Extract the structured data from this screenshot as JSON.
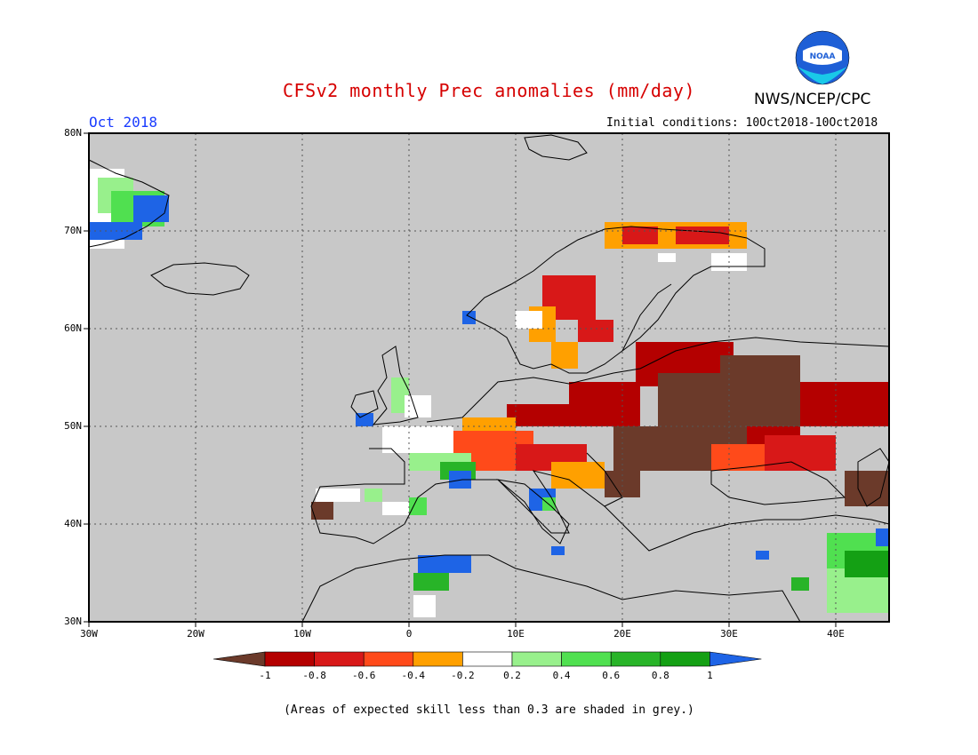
{
  "header": {
    "title": "CFSv2 monthly Prec anomalies (mm/day)",
    "organization": "NWS/NCEP/CPC",
    "logo_text": "NOAA",
    "month": "Oct 2018",
    "initial_conditions": "Initial conditions: 10Oct2018-10Oct2018"
  },
  "map": {
    "projection": "lat-lon",
    "lon_range": [
      -30,
      45
    ],
    "lat_range": [
      30,
      80
    ],
    "y_ticks": [
      "80N",
      "70N",
      "60N",
      "50N",
      "40N",
      "30N"
    ],
    "x_ticks": [
      "30W",
      "20W",
      "10W",
      "0",
      "10E",
      "20E",
      "30E",
      "40E"
    ],
    "background_color": "#c8c8c8"
  },
  "legend": {
    "labels": [
      "-1",
      "-0.8",
      "-0.6",
      "-0.4",
      "-0.2",
      "0.2",
      "0.4",
      "0.6",
      "0.8",
      "1"
    ],
    "colors": [
      "#6b3a2a",
      "#b40000",
      "#d81818",
      "#ff4a1a",
      "#ffa000",
      "#ffffff",
      "#98f08c",
      "#50e050",
      "#28b428",
      "#14a014",
      "#1e64e6"
    ]
  },
  "caption": "(Areas of expected skill less than 0.3 are shaded in grey.)"
}
